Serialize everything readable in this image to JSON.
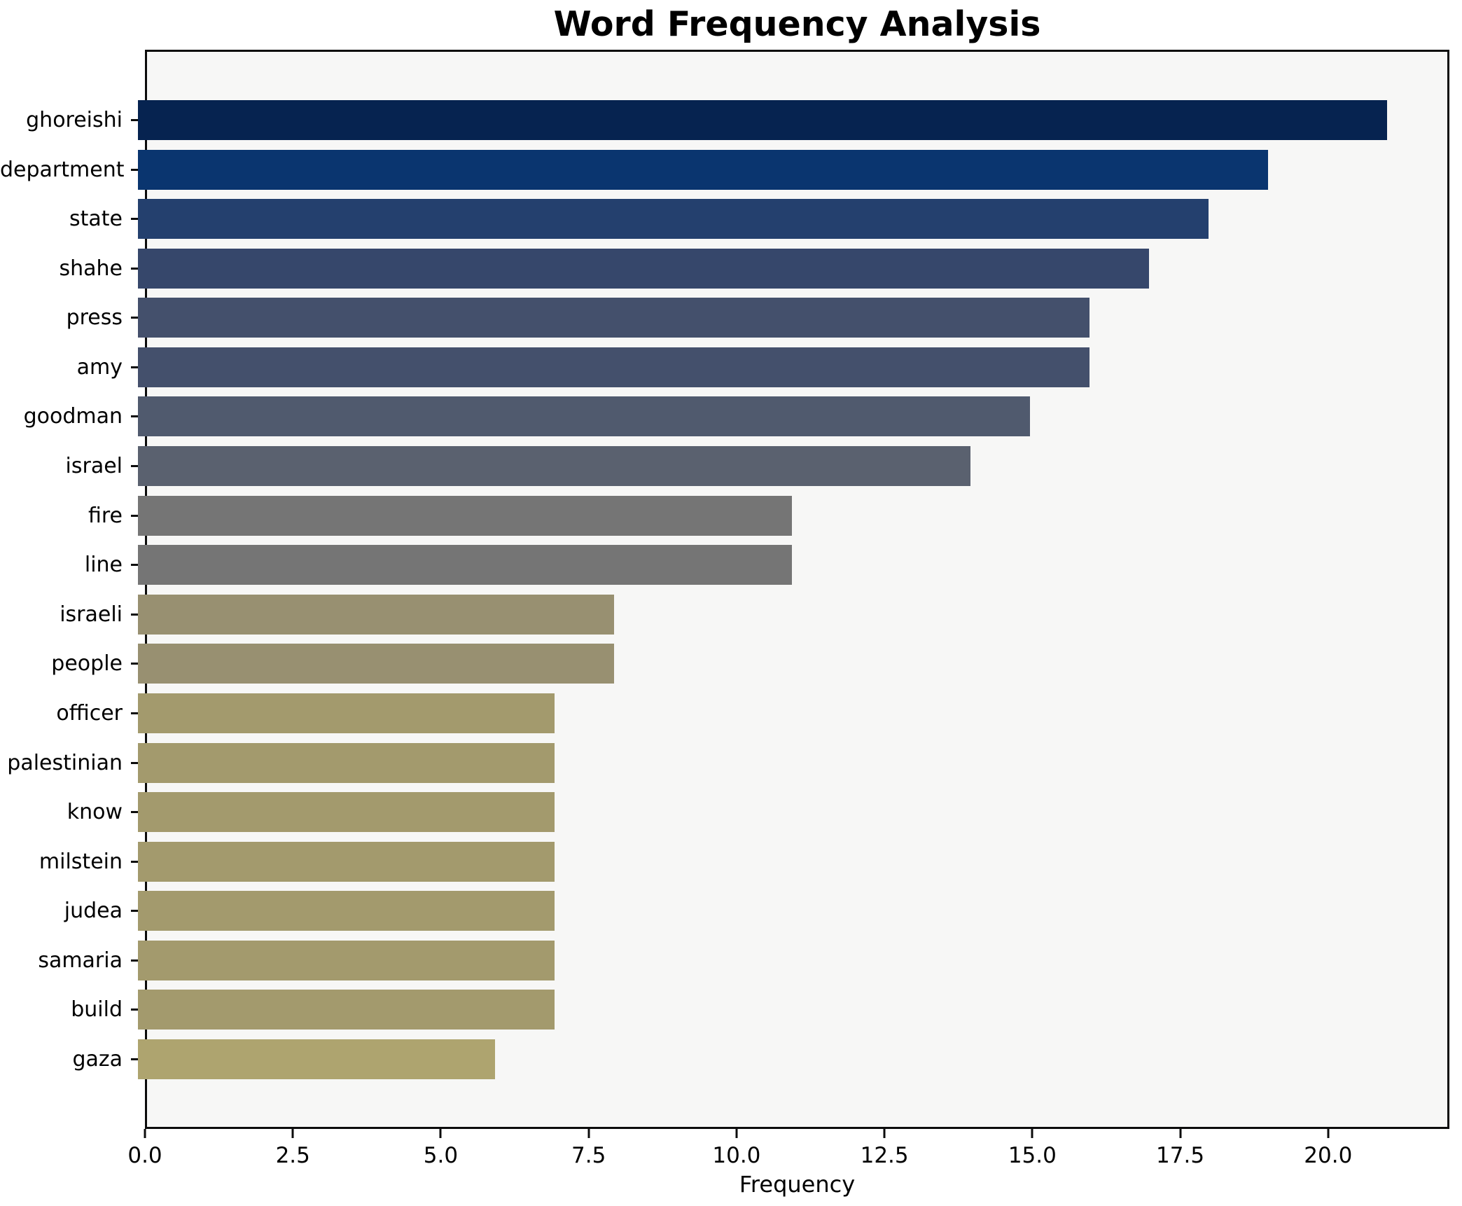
{
  "chart_data": {
    "type": "bar",
    "orientation": "horizontal",
    "title": "Word Frequency Analysis",
    "xlabel": "Frequency",
    "ylabel": "",
    "categories": [
      "ghoreishi",
      "department",
      "state",
      "shahe",
      "press",
      "amy",
      "goodman",
      "israel",
      "fire",
      "line",
      "israeli",
      "people",
      "officer",
      "palestinian",
      "know",
      "milstein",
      "judea",
      "samaria",
      "build",
      "gaza"
    ],
    "values": [
      21,
      19,
      18,
      17,
      16,
      16,
      15,
      14,
      11,
      11,
      8,
      8,
      7,
      7,
      7,
      7,
      7,
      7,
      7,
      6
    ],
    "bar_colors": [
      "#062350",
      "#0a356f",
      "#24406e",
      "#36476b",
      "#44506c",
      "#44506c",
      "#505a6e",
      "#5a616f",
      "#757575",
      "#757575",
      "#989071",
      "#989071",
      "#a39a6d",
      "#a39a6d",
      "#a39a6d",
      "#a39a6d",
      "#a39a6d",
      "#a39a6d",
      "#a39a6d",
      "#aea46f"
    ],
    "colormap": "cividis",
    "xlim": [
      0,
      22.05
    ],
    "x_ticks": [
      0.0,
      2.5,
      5.0,
      7.5,
      10.0,
      12.5,
      15.0,
      17.5,
      20.0
    ],
    "x_tick_labels": [
      "0.0",
      "2.5",
      "5.0",
      "7.5",
      "10.0",
      "12.5",
      "15.0",
      "17.5",
      "20.0"
    ],
    "grid": false,
    "legend": null
  },
  "style_colors": {
    "figure_background": "#ffffff",
    "plot_background": "#f7f7f6",
    "spine": "#0c0c0c",
    "text": "#000000"
  }
}
